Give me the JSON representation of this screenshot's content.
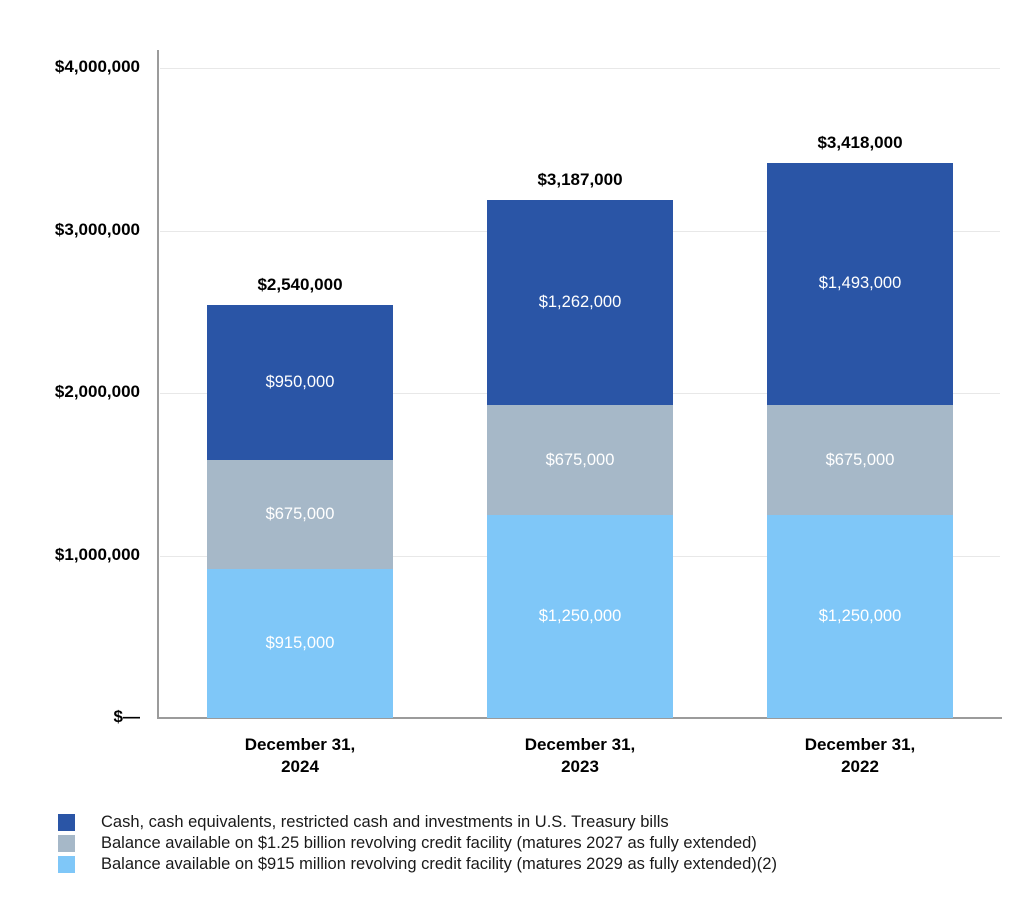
{
  "colors": {
    "axis_line": "#9B9B9B",
    "gridline": "#E8E8E8",
    "tick_label": "#000000",
    "segment_label": "#FFFFFF",
    "legend_text": "#1A1A1A",
    "background": "#FFFFFF"
  },
  "chart_data": {
    "type": "bar",
    "stacked": true,
    "title": "",
    "xlabel": "",
    "ylabel": "",
    "grid": true,
    "legend_position": "bottom",
    "ylim": [
      0,
      4000000
    ],
    "categories": [
      "December 31,\n2024",
      "December 31,\n2023",
      "December 31,\n2022"
    ],
    "series": [
      {
        "name": "Cash, cash equivalents, restricted cash and investments in U.S. Treasury bills",
        "color": "#2A55A6",
        "values": [
          950000,
          1262000,
          1493000
        ],
        "value_labels": [
          "$950,000",
          "$1,262,000",
          "$1,493,000"
        ]
      },
      {
        "name": "Balance available on $1.25 billion revolving credit facility (matures 2027 as fully extended)",
        "color": "#A6B8C8",
        "values": [
          675000,
          675000,
          675000
        ],
        "value_labels": [
          "$675,000",
          "$675,000",
          "$675,000"
        ]
      },
      {
        "name": "Balance available on $915 million revolving credit facility (matures 2029 as fully extended)(2)",
        "color": "#7FC7F8",
        "values": [
          915000,
          1250000,
          1250000
        ],
        "value_labels": [
          "$915,000",
          "$1,250,000",
          "$1,250,000"
        ]
      }
    ],
    "stack_order_bottom_to_top": [
      2,
      1,
      0
    ],
    "totals": [
      2540000,
      3187000,
      3418000
    ],
    "total_labels": [
      "$2,540,000",
      "$3,187,000",
      "$3,418,000"
    ],
    "y_ticks": [
      {
        "value": 4000000,
        "label": "$4,000,000"
      },
      {
        "value": 3000000,
        "label": "$3,000,000"
      },
      {
        "value": 2000000,
        "label": "$2,000,000"
      },
      {
        "value": 1000000,
        "label": "$1,000,000"
      },
      {
        "value": 0,
        "label": "$—"
      }
    ]
  }
}
